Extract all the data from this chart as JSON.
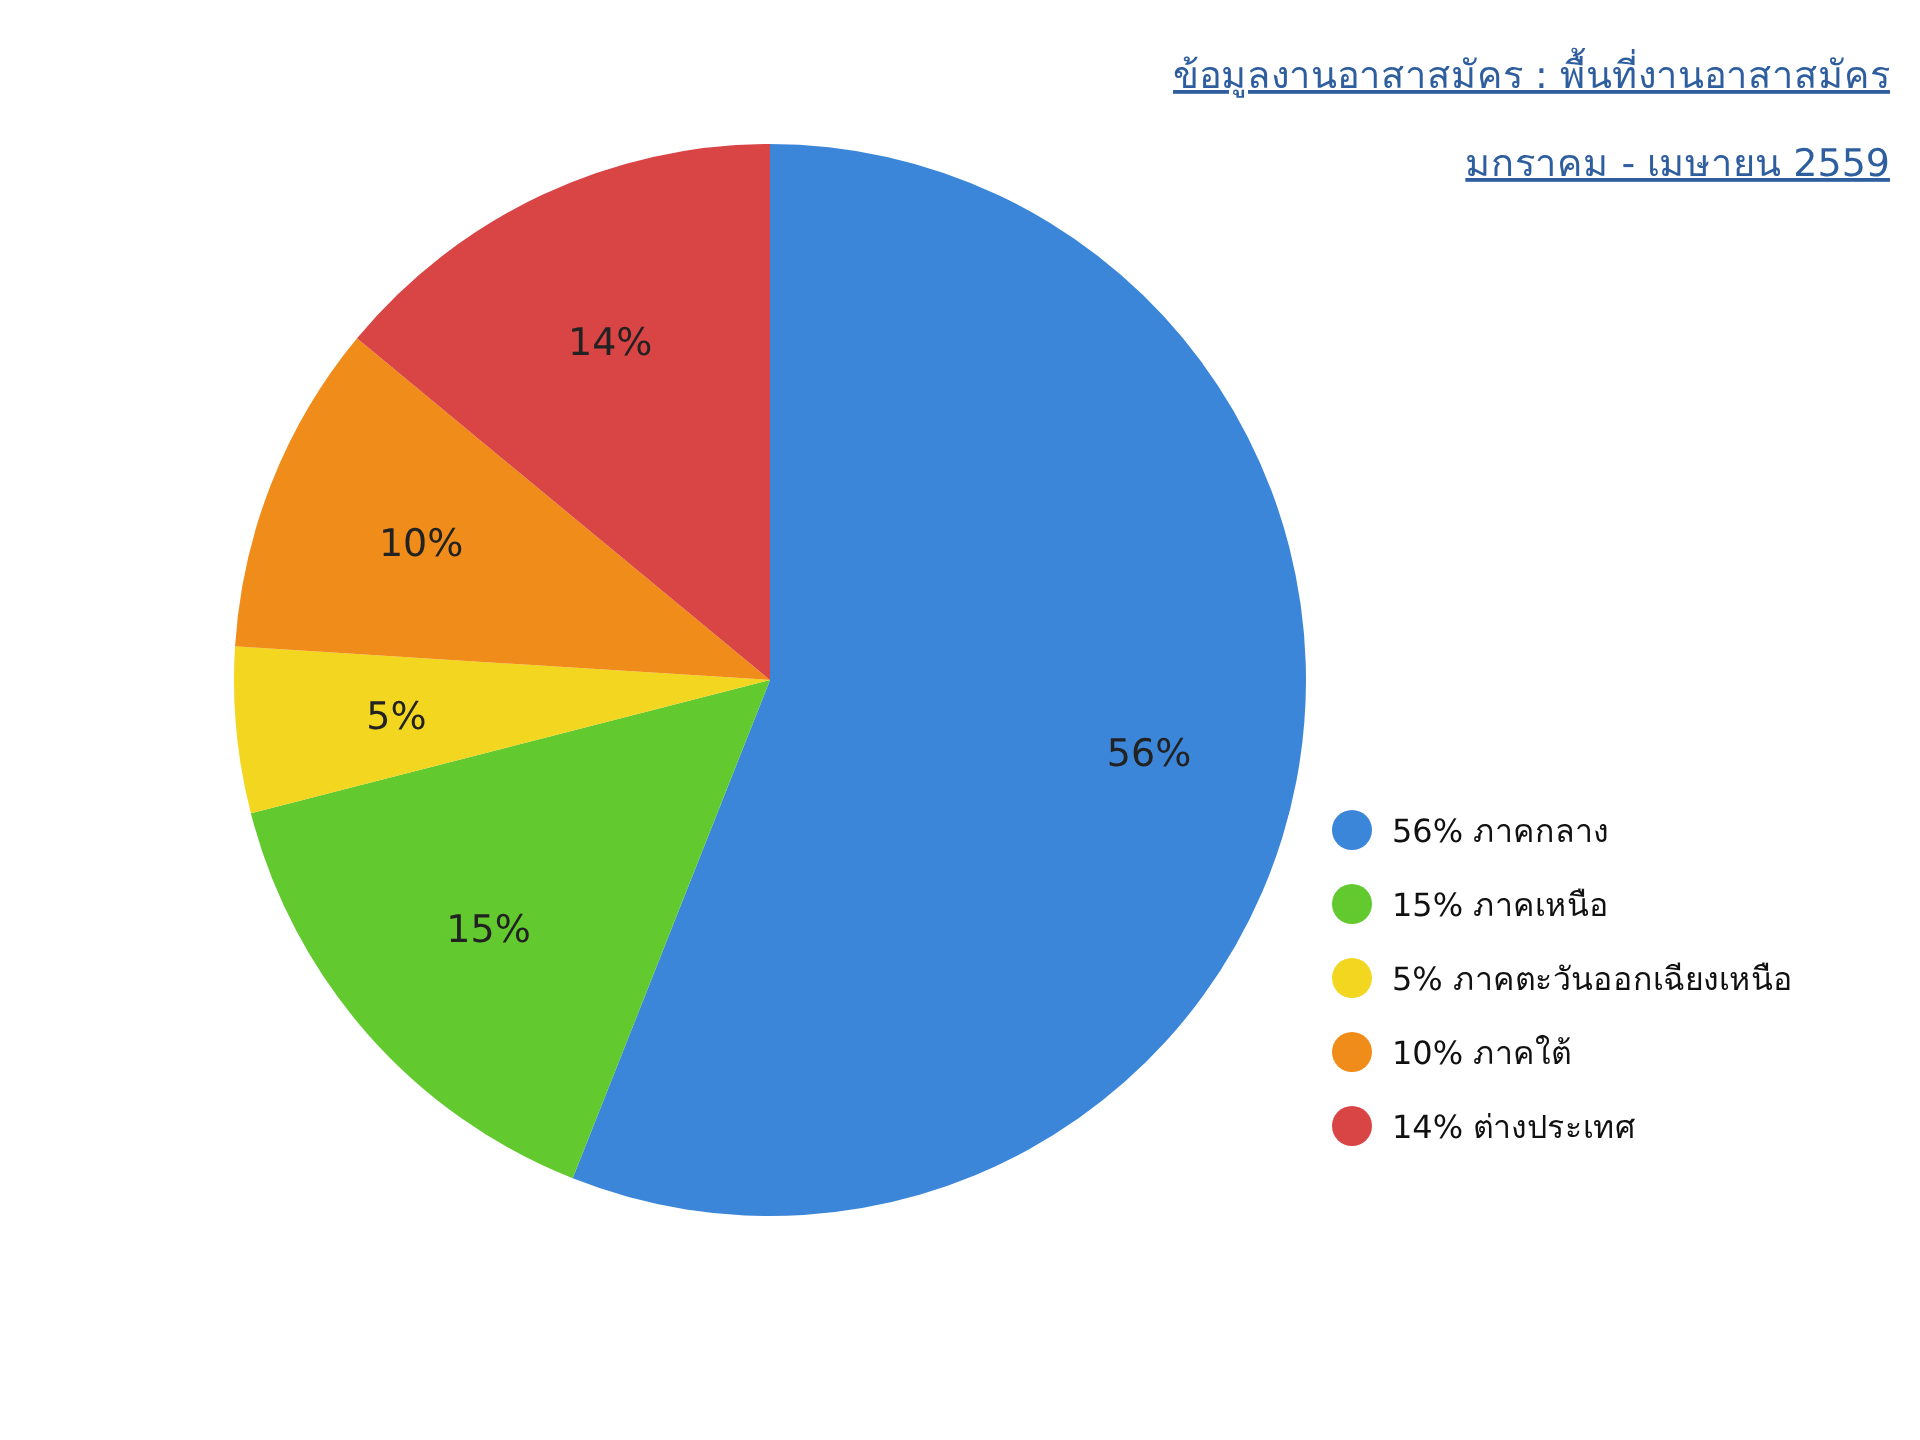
{
  "chart_data": {
    "type": "pie",
    "title": "ข้อมูลงานอาสาสมัคร : พื้นที่งานอาสาสมัคร",
    "subtitle": "มกราคม - เมษายน 2559",
    "categories": [
      "56% ภาคกลาง",
      "15% ภาคเหนือ",
      "5% ภาคตะวันออกเฉียงเหนือ",
      "10% ภาคใต้",
      "14% ต่างประเทศ"
    ],
    "values": [
      56,
      15,
      5,
      10,
      14
    ],
    "value_labels": [
      "56%",
      "15%",
      "5%",
      "10%",
      "14%"
    ],
    "colors": [
      "#3b86d8",
      "#62c92f",
      "#f2d620",
      "#f08c1a",
      "#d94444"
    ],
    "legend": "right"
  }
}
